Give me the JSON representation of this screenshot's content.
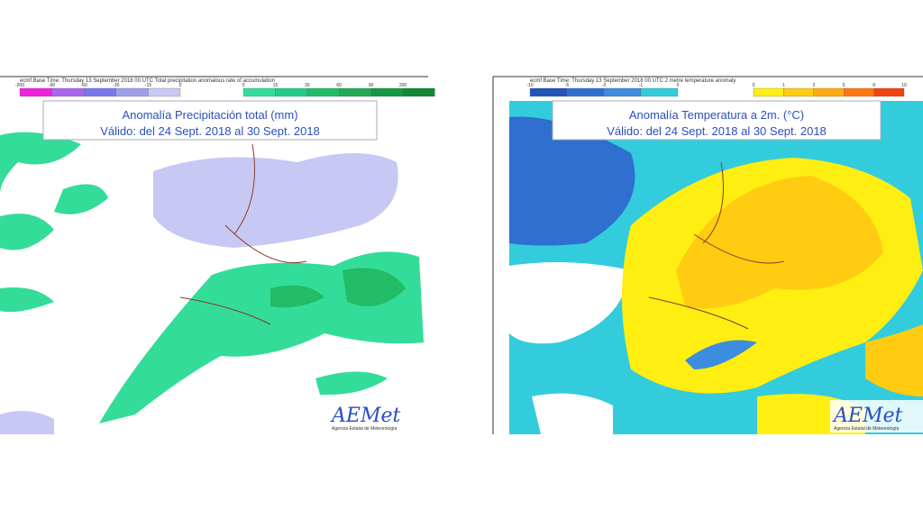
{
  "panels": [
    {
      "header": "ecmf  Base Time: Thursday 13 September 2018 00 UTC Total precipitation anomalous rate of accumulation",
      "legend_left": {
        "ticks": [
          -200,
          -90,
          -60,
          -30,
          -15,
          0
        ],
        "colors": [
          "#ee22dd",
          "#aa66ee",
          "#7777ee",
          "#9f9fe8",
          "#c8c8f4"
        ]
      },
      "legend_right": {
        "ticks": [
          0,
          15,
          30,
          60,
          90,
          200
        ],
        "colors": [
          "#33dd99",
          "#22cc88",
          "#22bb66",
          "#22aa55",
          "#119944",
          "#118833"
        ]
      },
      "title_line1": "Anomalía Precipitación total (mm)",
      "title_line2": "Válido: del 24 Sept. 2018 al 30 Sept. 2018",
      "logo": "AEMet",
      "logo_subtitle": "Agencia Estatal de Meteorología"
    },
    {
      "header": "ecmf  Base Time: Thursday 13 September 2018 00 UTC 2 metre temperature anomaly",
      "legend_left": {
        "ticks": [
          -10,
          -5,
          -3,
          -1,
          0
        ],
        "colors": [
          "#2255bb",
          "#2e6fd0",
          "#3c8ce0",
          "#33ccdd"
        ]
      },
      "legend_right": {
        "ticks": [
          0,
          1,
          3,
          5,
          8,
          10
        ],
        "colors": [
          "#ffee11",
          "#ffcc11",
          "#ffaa11",
          "#ff7711",
          "#ee4411"
        ]
      },
      "title_line1": "Anomalía Temperatura a 2m. (°C)",
      "title_line2": "Válido: del 24 Sept. 2018 al 30 Sept. 2018",
      "logo": "AEMet",
      "logo_subtitle": "Agencia Estatal de Meteorología"
    }
  ]
}
